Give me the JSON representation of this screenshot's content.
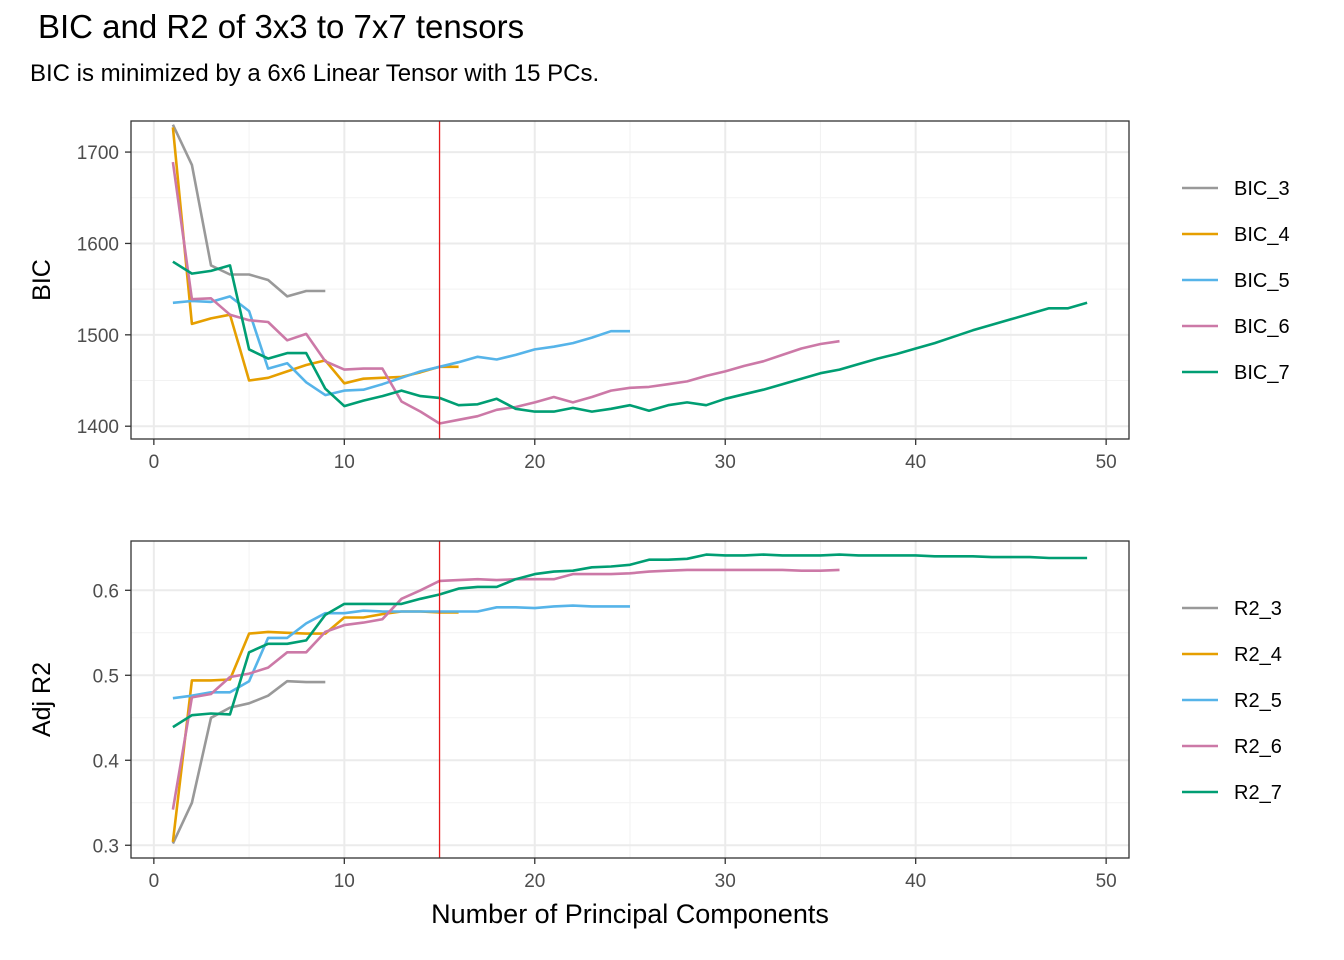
{
  "title": "BIC and R2 of 3x3 to 7x7 tensors",
  "subtitle": "BIC is minimized by a 6x6 Linear Tensor with 15 PCs.",
  "chart_data": [
    {
      "type": "line",
      "id": "bic",
      "ylabel": "BIC",
      "xlabel": "",
      "xlim": [
        -1.2,
        51.2
      ],
      "ylim": [
        1386,
        1734
      ],
      "xticks": [
        0,
        10,
        20,
        30,
        40,
        50
      ],
      "yticks": [
        1400,
        1500,
        1600,
        1700
      ],
      "ytick_labels": [
        "1400",
        "1500",
        "1600",
        "1700"
      ],
      "grid": true,
      "legend_position": "right",
      "reference_vline": {
        "x": 15,
        "color": "#e41a1c"
      },
      "series": [
        {
          "name": "BIC_3",
          "color": "#999999",
          "x": [
            1,
            2,
            3,
            4,
            5,
            6,
            7,
            8,
            9
          ],
          "y": [
            1730,
            1686,
            1576,
            1566,
            1566,
            1560,
            1542,
            1548,
            1548
          ]
        },
        {
          "name": "BIC_4",
          "color": "#E69F00",
          "x": [
            1,
            2,
            3,
            4,
            5,
            6,
            7,
            8,
            9,
            10,
            11,
            12,
            13,
            14,
            15,
            16
          ],
          "y": [
            1727,
            1512,
            1518,
            1522,
            1450,
            1453,
            1460,
            1467,
            1472,
            1447,
            1452,
            1453,
            1454,
            1459,
            1465,
            1465
          ]
        },
        {
          "name": "BIC_5",
          "color": "#56B4E9",
          "x": [
            1,
            2,
            3,
            4,
            5,
            6,
            7,
            8,
            9,
            10,
            11,
            12,
            13,
            14,
            15,
            16,
            17,
            18,
            19,
            20,
            21,
            22,
            23,
            24,
            25
          ],
          "y": [
            1535,
            1537,
            1536,
            1542,
            1526,
            1463,
            1469,
            1448,
            1434,
            1439,
            1440,
            1446,
            1453,
            1460,
            1465,
            1470,
            1476,
            1473,
            1478,
            1484,
            1487,
            1491,
            1497,
            1504,
            1504
          ]
        },
        {
          "name": "BIC_6",
          "color": "#CC79A7",
          "x": [
            1,
            2,
            3,
            4,
            5,
            6,
            7,
            8,
            9,
            10,
            11,
            12,
            13,
            14,
            15,
            16,
            17,
            18,
            19,
            20,
            21,
            22,
            23,
            24,
            25,
            26,
            27,
            28,
            29,
            30,
            31,
            32,
            33,
            34,
            35,
            36
          ],
          "y": [
            1689,
            1539,
            1540,
            1522,
            1516,
            1514,
            1494,
            1501,
            1471,
            1462,
            1463,
            1463,
            1427,
            1416,
            1403,
            1407,
            1411,
            1418,
            1421,
            1426,
            1432,
            1426,
            1432,
            1439,
            1442,
            1443,
            1446,
            1449,
            1455,
            1460,
            1466,
            1471,
            1478,
            1485,
            1490,
            1493
          ]
        },
        {
          "name": "BIC_7",
          "color": "#009E73",
          "x": [
            1,
            2,
            3,
            4,
            5,
            6,
            7,
            8,
            9,
            10,
            11,
            12,
            13,
            14,
            15,
            16,
            17,
            18,
            19,
            20,
            21,
            22,
            23,
            24,
            25,
            26,
            27,
            28,
            29,
            30,
            31,
            32,
            33,
            34,
            35,
            36,
            37,
            38,
            39,
            40,
            41,
            42,
            43,
            44,
            45,
            46,
            47,
            48,
            49
          ],
          "y": [
            1580,
            1567,
            1570,
            1576,
            1484,
            1474,
            1480,
            1480,
            1441,
            1422,
            1428,
            1433,
            1439,
            1433,
            1431,
            1423,
            1424,
            1430,
            1419,
            1416,
            1416,
            1420,
            1416,
            1419,
            1423,
            1417,
            1423,
            1426,
            1423,
            1430,
            1435,
            1440,
            1446,
            1452,
            1458,
            1462,
            1468,
            1474,
            1479,
            1485,
            1491,
            1498,
            1505,
            1511,
            1517,
            1523,
            1529,
            1529,
            1535
          ]
        }
      ]
    },
    {
      "type": "line",
      "id": "r2",
      "ylabel": "Adj R2",
      "xlabel": "Number of Principal Components",
      "xlim": [
        -1.2,
        51.2
      ],
      "ylim": [
        0.285,
        0.658
      ],
      "xticks": [
        0,
        10,
        20,
        30,
        40,
        50
      ],
      "yticks": [
        0.3,
        0.4,
        0.5,
        0.6
      ],
      "ytick_labels": [
        "0.3",
        "0.4",
        "0.5",
        "0.6"
      ],
      "grid": true,
      "legend_position": "right",
      "reference_vline": {
        "x": 15,
        "color": "#e41a1c"
      },
      "series": [
        {
          "name": "R2_3",
          "color": "#999999",
          "x": [
            1,
            2,
            3,
            4,
            5,
            6,
            7,
            8,
            9
          ],
          "y": [
            0.302,
            0.35,
            0.45,
            0.462,
            0.467,
            0.476,
            0.493,
            0.492,
            0.492
          ]
        },
        {
          "name": "R2_4",
          "color": "#E69F00",
          "x": [
            1,
            2,
            3,
            4,
            5,
            6,
            7,
            8,
            9,
            10,
            11,
            12,
            13,
            14,
            15,
            16
          ],
          "y": [
            0.304,
            0.494,
            0.494,
            0.495,
            0.549,
            0.551,
            0.55,
            0.549,
            0.549,
            0.568,
            0.568,
            0.572,
            0.575,
            0.575,
            0.574,
            0.574
          ]
        },
        {
          "name": "R2_5",
          "color": "#56B4E9",
          "x": [
            1,
            2,
            3,
            4,
            5,
            6,
            7,
            8,
            9,
            10,
            11,
            12,
            13,
            14,
            15,
            16,
            17,
            18,
            19,
            20,
            21,
            22,
            23,
            24,
            25
          ],
          "y": [
            0.473,
            0.476,
            0.48,
            0.48,
            0.493,
            0.544,
            0.544,
            0.561,
            0.573,
            0.573,
            0.576,
            0.575,
            0.575,
            0.575,
            0.575,
            0.575,
            0.575,
            0.58,
            0.58,
            0.579,
            0.581,
            0.582,
            0.581,
            0.581,
            0.581
          ]
        },
        {
          "name": "R2_6",
          "color": "#CC79A7",
          "x": [
            1,
            2,
            3,
            4,
            5,
            6,
            7,
            8,
            9,
            10,
            11,
            12,
            13,
            14,
            15,
            16,
            17,
            18,
            19,
            20,
            21,
            22,
            23,
            24,
            25,
            26,
            27,
            28,
            29,
            30,
            31,
            32,
            33,
            34,
            35,
            36
          ],
          "y": [
            0.342,
            0.474,
            0.478,
            0.498,
            0.502,
            0.509,
            0.527,
            0.527,
            0.551,
            0.559,
            0.562,
            0.566,
            0.59,
            0.6,
            0.611,
            0.612,
            0.613,
            0.612,
            0.613,
            0.613,
            0.613,
            0.619,
            0.619,
            0.619,
            0.62,
            0.622,
            0.623,
            0.624,
            0.624,
            0.624,
            0.624,
            0.624,
            0.624,
            0.623,
            0.623,
            0.624
          ]
        },
        {
          "name": "R2_7",
          "color": "#009E73",
          "x": [
            1,
            2,
            3,
            4,
            5,
            6,
            7,
            8,
            9,
            10,
            11,
            12,
            13,
            14,
            15,
            16,
            17,
            18,
            19,
            20,
            21,
            22,
            23,
            24,
            25,
            26,
            27,
            28,
            29,
            30,
            31,
            32,
            33,
            34,
            35,
            36,
            37,
            38,
            39,
            40,
            41,
            42,
            43,
            44,
            45,
            46,
            47,
            48,
            49
          ],
          "y": [
            0.439,
            0.453,
            0.455,
            0.454,
            0.527,
            0.537,
            0.537,
            0.541,
            0.571,
            0.584,
            0.584,
            0.584,
            0.584,
            0.59,
            0.595,
            0.602,
            0.604,
            0.604,
            0.613,
            0.619,
            0.622,
            0.623,
            0.627,
            0.628,
            0.63,
            0.636,
            0.636,
            0.637,
            0.642,
            0.641,
            0.641,
            0.642,
            0.641,
            0.641,
            0.641,
            0.642,
            0.641,
            0.641,
            0.641,
            0.641,
            0.64,
            0.64,
            0.64,
            0.639,
            0.639,
            0.639,
            0.638,
            0.638,
            0.638
          ]
        }
      ]
    }
  ]
}
